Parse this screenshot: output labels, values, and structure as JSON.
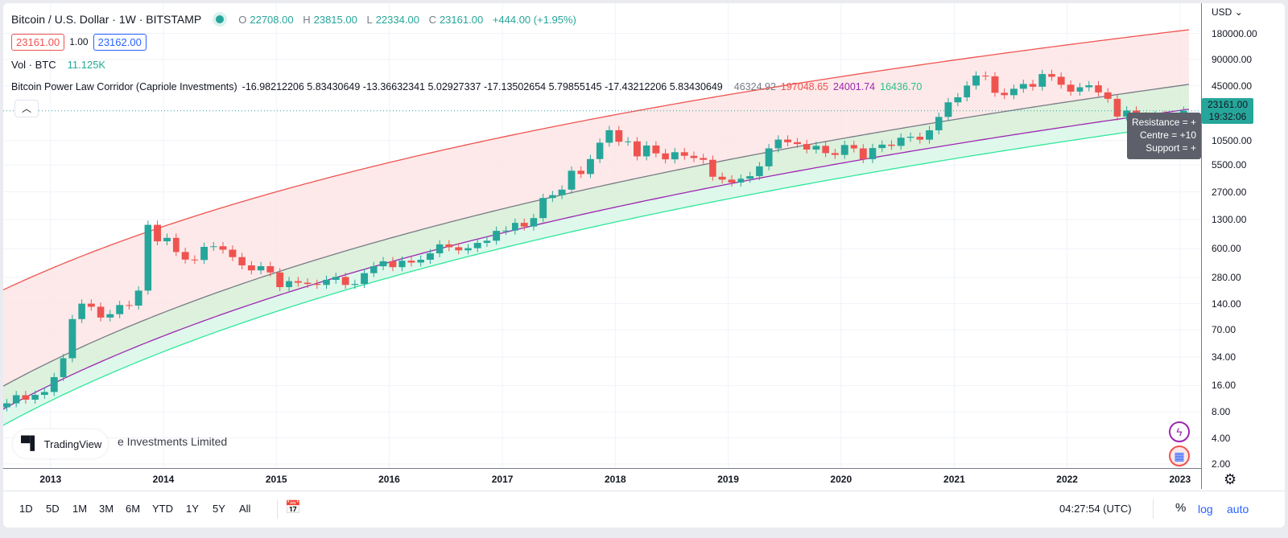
{
  "header": {
    "symbol": "Bitcoin / U.S. Dollar · 1W · BITSTAMP",
    "status_color": "#26a69a",
    "ohlc": {
      "o_label": "O",
      "o": "22708.00",
      "h_label": "H",
      "h": "23815.00",
      "l_label": "L",
      "l": "22334.00",
      "c_label": "C",
      "c": "23161.00",
      "change": "+444.00 (+1.95%)"
    },
    "bid": "23161.00",
    "spread": "1.00",
    "ask": "23162.00",
    "volume_label": "Vol · BTC",
    "volume_value": "11.125K",
    "indicator": {
      "name": "Bitcoin Power Law Corridor (Capriole Investments)",
      "params": "-16.98212206 5.83430649 -13.36632341 5.02927337 -17.13502654 5.79855145 -17.43212206 5.83430649",
      "values": {
        "centre": "46324.92",
        "resistance": "197048.65",
        "purple": "24001.74",
        "support": "16436.70"
      }
    }
  },
  "price_axis": {
    "currency": "USD",
    "ticks": [
      "180000.00",
      "90000.00",
      "45000.00",
      "10500.00",
      "5500.00",
      "2700.00",
      "1300.00",
      "600.00",
      "280.00",
      "140.00",
      "70.00",
      "34.00",
      "16.00",
      "8.00",
      "4.00",
      "2.00"
    ],
    "last_price": "23161.00",
    "countdown": "19:32:06"
  },
  "tooltip": {
    "resistance": "Resistance = +",
    "centre": "Centre = +10",
    "support": "Support = +"
  },
  "watermark": "e Investments Limited",
  "logo_text": "TradingView",
  "bottom_bar": {
    "ranges": [
      "1D",
      "5D",
      "1M",
      "3M",
      "6M",
      "YTD",
      "1Y",
      "5Y",
      "All"
    ],
    "clock": "04:27:54 (UTC)",
    "percent": "%",
    "log": "log",
    "auto": "auto"
  },
  "chart_data": {
    "type": "candlestick",
    "scale": "log",
    "ylim": [
      1.8,
      230000
    ],
    "xlim": [
      "2012-08-01",
      "2023-03-10"
    ],
    "x_ticks": [
      "2013",
      "2014",
      "2015",
      "2016",
      "2017",
      "2018",
      "2019",
      "2020",
      "2021",
      "2022",
      "2023"
    ],
    "grid": true,
    "colors": {
      "up": "#26a69a",
      "down": "#ef5350",
      "resistance": "#ef5350",
      "centre": "#787b86",
      "purple": "#9c27b0",
      "support": "#2ee89a"
    },
    "corridor": {
      "centre": [
        -16.98212206,
        5.83430649
      ],
      "resistance": [
        -13.36632341,
        5.02927337
      ],
      "purple": [
        -17.13502654,
        5.79855145
      ],
      "support": [
        -17.43212206,
        5.83430649
      ]
    },
    "monthly_close": {
      "start": "2012-08",
      "values": [
        10,
        12.4,
        11,
        12.5,
        13.5,
        20,
        33,
        93,
        140,
        129,
        97,
        106,
        135,
        133,
        198,
        1130,
        730,
        800,
        550,
        450,
        445,
        630,
        640,
        585,
        480,
        386,
        338,
        378,
        320,
        217,
        254,
        244,
        236,
        230,
        263,
        284,
        230,
        236,
        314,
        377,
        430,
        368,
        437,
        416,
        448,
        531,
        673,
        624,
        575,
        609,
        700,
        742,
        963,
        970,
        1190,
        1080,
        1350,
        2300,
        2480,
        2870,
        4735,
        4340,
        6450,
        9950,
        13850,
        10200,
        10300,
        6930,
        9240,
        7500,
        6400,
        7730,
        7030,
        6630,
        6320,
        4040,
        3740,
        3460,
        3830,
        4100,
        5320,
        8560,
        10800,
        10080,
        9600,
        8300,
        9150,
        7550,
        7200,
        9350,
        8550,
        6430,
        8630,
        9450,
        9140,
        11350,
        11650,
        10780,
        13800,
        19700,
        28990,
        33100,
        45200,
        58800,
        57700,
        37300,
        35040,
        41500,
        47100,
        43800,
        61300,
        57000,
        46200,
        38500,
        43200,
        45500,
        37700,
        31800,
        19900,
        23300,
        20050,
        19430,
        20490,
        17160,
        16540,
        23161
      ]
    }
  }
}
